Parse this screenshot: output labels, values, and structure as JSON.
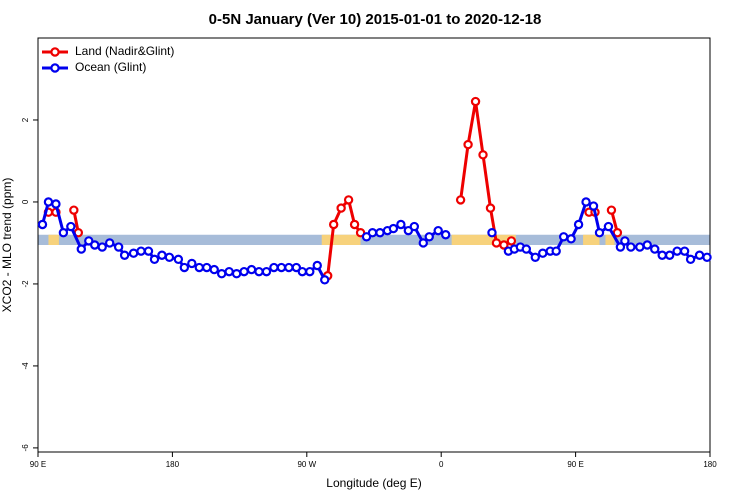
{
  "chart_data": {
    "type": "line",
    "title": "0-5N January (Ver 10)   2015-01-01 to 2020-12-18",
    "x_label": "Longitude (deg E)",
    "y_label": "XCO2 - MLO trend (ppm)",
    "xlim": [
      90,
      540
    ],
    "ylim": [
      -6.1,
      4
    ],
    "xticks": [
      {
        "value": 90,
        "label": "90 E"
      },
      180,
      {
        "value": 270,
        "label": "90 W"
      },
      {
        "value": 360,
        "label": "0"
      },
      {
        "value": 450,
        "label": "90 E"
      },
      {
        "value": 540,
        "label": "180"
      }
    ],
    "yticks": [
      2,
      0,
      -2,
      -4,
      -6
    ],
    "legend": "top-left",
    "band": {
      "ylim": [
        -1.05,
        -0.8
      ],
      "color": "#a7bcd9",
      "land_color": "#f7d27c",
      "land_x": [
        [
          97,
          104
        ],
        [
          280,
          306
        ],
        [
          367,
          410
        ],
        [
          455,
          466
        ],
        [
          470,
          476
        ]
      ]
    },
    "series": [
      {
        "name": "Land (Nadir&Glint)",
        "color": "#ee0000",
        "x": [
          97,
          102,
          null,
          114,
          117,
          null,
          284,
          288,
          293,
          298,
          302,
          306,
          null,
          373,
          378,
          383,
          388,
          393,
          397,
          402,
          407,
          null,
          459,
          463,
          null,
          474,
          478
        ],
        "values": [
          -0.25,
          -0.25,
          null,
          -0.2,
          -0.75,
          null,
          -1.8,
          -0.55,
          -0.15,
          0.05,
          -0.55,
          -0.75,
          null,
          0.05,
          1.4,
          2.45,
          1.15,
          -0.15,
          -1.0,
          -1.05,
          -0.95,
          null,
          -0.25,
          -0.25,
          null,
          -0.2,
          -0.75
        ]
      },
      {
        "name": "Ocean (Glint)",
        "color": "#0000ee",
        "x": [
          93,
          97,
          102,
          107,
          112,
          119,
          124,
          128,
          133,
          138,
          144,
          148,
          154,
          159,
          164,
          168,
          173,
          178,
          184,
          188,
          193,
          198,
          203,
          208,
          213,
          218,
          223,
          228,
          233,
          238,
          243,
          248,
          253,
          258,
          263,
          267,
          272,
          277,
          282,
          null,
          310,
          314,
          319,
          324,
          328,
          333,
          338,
          342,
          348,
          352,
          358,
          363,
          null,
          394,
          null,
          405,
          409,
          413,
          417,
          423,
          428,
          433,
          437,
          442,
          447,
          452,
          457,
          462,
          466,
          472,
          480,
          483,
          487,
          493,
          498,
          503,
          508,
          513,
          518,
          523,
          527,
          533,
          538
        ],
        "values": [
          -0.55,
          0.0,
          -0.05,
          -0.75,
          -0.6,
          -1.15,
          -0.95,
          -1.05,
          -1.1,
          -1.0,
          -1.1,
          -1.3,
          -1.25,
          -1.2,
          -1.2,
          -1.4,
          -1.3,
          -1.35,
          -1.4,
          -1.6,
          -1.5,
          -1.6,
          -1.6,
          -1.65,
          -1.75,
          -1.7,
          -1.75,
          -1.7,
          -1.65,
          -1.7,
          -1.7,
          -1.6,
          -1.6,
          -1.6,
          -1.6,
          -1.7,
          -1.7,
          -1.55,
          -1.9,
          null,
          -0.85,
          -0.75,
          -0.75,
          -0.7,
          -0.65,
          -0.55,
          -0.7,
          -0.6,
          -1.0,
          -0.85,
          -0.7,
          -0.8,
          null,
          -0.75,
          null,
          -1.2,
          -1.15,
          -1.1,
          -1.15,
          -1.35,
          -1.25,
          -1.2,
          -1.2,
          -0.85,
          -0.9,
          -0.55,
          0.0,
          -0.1,
          -0.75,
          -0.6,
          -1.1,
          -0.95,
          -1.1,
          -1.1,
          -1.05,
          -1.15,
          -1.3,
          -1.3,
          -1.2,
          -1.2,
          -1.4,
          -1.3,
          -1.35
        ]
      }
    ]
  }
}
